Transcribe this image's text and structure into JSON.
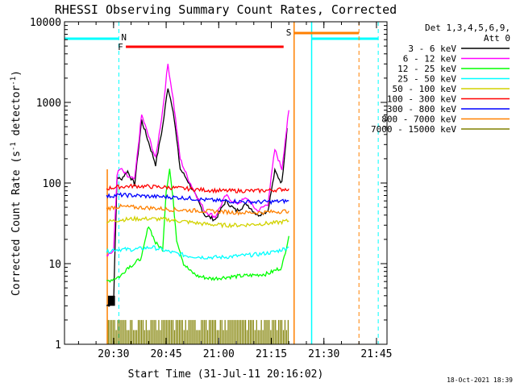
{
  "chart_data": {
    "type": "line",
    "title": "RHESSI Observing Summary Count Rates, Corrected",
    "xlabel": "Start Time (31-Jul-11 20:16:02)",
    "ylabel_main": "Corrected Count Rate (s",
    "ylabel_sup1": "-1",
    "ylabel_mid": " detector",
    "ylabel_sup2": "-1",
    "ylabel_end": ")",
    "y_scale": "log",
    "ylim": [
      1,
      10000
    ],
    "xlim_minutes": [
      0,
      92
    ],
    "x_ticks": [
      {
        "t": 14,
        "label": "20:30"
      },
      {
        "t": 29,
        "label": "20:45"
      },
      {
        "t": 44,
        "label": "21:00"
      },
      {
        "t": 59,
        "label": "21:15"
      },
      {
        "t": 74,
        "label": "21:30"
      },
      {
        "t": 89,
        "label": "21:45"
      }
    ],
    "y_ticks": [
      {
        "v": 1,
        "label": "1"
      },
      {
        "v": 10,
        "label": "10"
      },
      {
        "v": 100,
        "label": "100"
      },
      {
        "v": 1000,
        "label": "1000"
      },
      {
        "v": 10000,
        "label": "10000"
      }
    ],
    "legend_header": [
      "Det 1,3,4,5,6,9,",
      "Att 0"
    ],
    "legend_placement": "right",
    "series": [
      {
        "name": "3 - 6 keV",
        "color": "#000000",
        "x": [
          12,
          14,
          15,
          16,
          18,
          20,
          22,
          24,
          26,
          28,
          29.5,
          31,
          33,
          35,
          37,
          40,
          43,
          46,
          49,
          52,
          55,
          58,
          60,
          62,
          63.5
        ],
        "y": [
          3,
          3.3,
          120,
          110,
          140,
          95,
          600,
          320,
          170,
          500,
          1550,
          800,
          150,
          110,
          75,
          40,
          35,
          60,
          45,
          55,
          40,
          45,
          140,
          100,
          480
        ]
      },
      {
        "name": "6 - 12 keV",
        "color": "#ff00ff",
        "x": [
          12,
          14,
          15,
          16,
          18,
          20,
          22,
          24,
          26,
          28,
          29.5,
          31,
          33,
          35,
          37,
          40,
          43,
          46,
          49,
          52,
          55,
          58,
          60,
          62,
          64
        ],
        "y": [
          13,
          14,
          130,
          150,
          120,
          110,
          700,
          380,
          200,
          800,
          3000,
          1100,
          200,
          120,
          80,
          45,
          38,
          70,
          55,
          65,
          45,
          55,
          260,
          150,
          800
        ]
      },
      {
        "name": "12 - 25 keV",
        "color": "#00ff00",
        "x": [
          12,
          14,
          16,
          18,
          20,
          22,
          24,
          26,
          28,
          29,
          30,
          31,
          32,
          34,
          36,
          38,
          42,
          46,
          50,
          54,
          58,
          62,
          64
        ],
        "y": [
          6,
          6.5,
          7,
          9,
          10,
          12,
          30,
          18,
          15,
          80,
          150,
          60,
          20,
          10,
          8,
          7,
          6.5,
          6.8,
          7,
          7.2,
          7.5,
          9,
          22
        ]
      },
      {
        "name": "25 - 50 keV",
        "color": "#00ffff",
        "x": [
          12,
          14,
          16,
          20,
          25,
          30,
          35,
          40,
          45,
          50,
          55,
          60,
          64
        ],
        "y": [
          14,
          15,
          15,
          15,
          16,
          14,
          12.5,
          12,
          12,
          12.5,
          13,
          14,
          16
        ]
      },
      {
        "name": "50 - 100 keV",
        "color": "#d2d200",
        "x": [
          12,
          14,
          16,
          20,
          25,
          30,
          35,
          40,
          45,
          50,
          55,
          60,
          64
        ],
        "y": [
          33,
          34,
          35,
          36,
          36,
          35,
          33,
          31,
          30,
          30,
          31,
          32,
          34
        ]
      },
      {
        "name": "100 - 300 keV",
        "color": "#ff0000",
        "x": [
          12,
          14,
          16,
          20,
          25,
          30,
          35,
          40,
          45,
          50,
          55,
          60,
          64
        ],
        "y": [
          85,
          88,
          90,
          92,
          90,
          88,
          85,
          82,
          80,
          80,
          80,
          82,
          85
        ]
      },
      {
        "name": "300 - 800 keV",
        "color": "#0000ff",
        "x": [
          12,
          14,
          16,
          20,
          25,
          30,
          35,
          40,
          45,
          50,
          55,
          60,
          64
        ],
        "y": [
          68,
          70,
          71,
          70,
          68,
          67,
          65,
          62,
          60,
          59,
          58,
          59,
          60
        ]
      },
      {
        "name": "800 - 7000 keV",
        "color": "#ff8000",
        "x": [
          12,
          14,
          16,
          20,
          25,
          30,
          35,
          40,
          45,
          50,
          55,
          60,
          64
        ],
        "y": [
          48,
          50,
          51,
          50,
          49,
          47,
          46,
          45,
          44,
          43,
          43,
          44,
          45
        ]
      },
      {
        "name": "7000 - 15000 keV",
        "color": "#808000",
        "x": [],
        "y": []
      }
    ],
    "annotations": [
      {
        "label": "N",
        "color": "#00ffff"
      },
      {
        "label": "F",
        "color": "#ff0000"
      },
      {
        "label": "S",
        "color": "#ff8000"
      }
    ],
    "timestamp": "18-Oct-2021 18:39"
  }
}
